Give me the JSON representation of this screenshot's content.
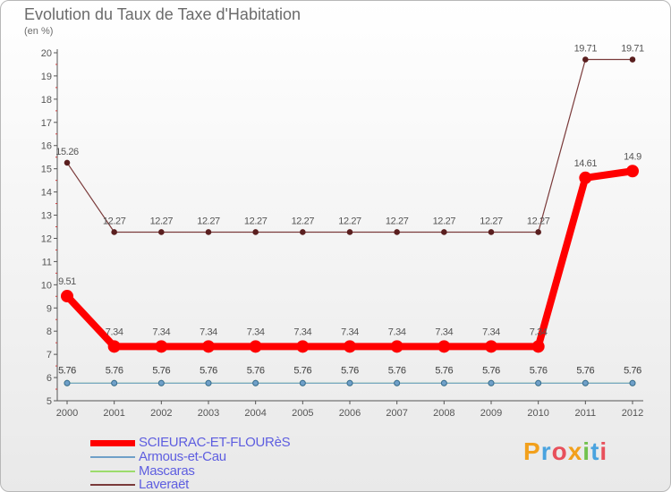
{
  "chart_data": {
    "type": "line",
    "title": "Evolution du Taux de Taxe d'Habitation",
    "ylabel": "(en %)",
    "xlabel": "",
    "ylim": [
      5,
      20
    ],
    "yticks": [
      5,
      6,
      7,
      8,
      9,
      10,
      11,
      12,
      13,
      14,
      15,
      16,
      17,
      18,
      19,
      20
    ],
    "categories": [
      "2000",
      "2001",
      "2002",
      "2003",
      "2004",
      "2005",
      "2006",
      "2007",
      "2008",
      "2009",
      "2010",
      "2011",
      "2012"
    ],
    "series": [
      {
        "name": "SCIEURAC-ET-FLOURèS",
        "color": "#ff0000",
        "values": [
          9.51,
          7.34,
          7.34,
          7.34,
          7.34,
          7.34,
          7.34,
          7.34,
          7.34,
          7.34,
          7.34,
          14.61,
          14.9
        ],
        "labels": [
          "9.51",
          "7.34",
          "7.34",
          "7.34",
          "7.34",
          "7.34",
          "7.34",
          "7.34",
          "7.34",
          "7.34",
          "7.34",
          "14.61",
          "14.9"
        ]
      },
      {
        "name": "Armous-et-Cau",
        "color": "#6fa0c8",
        "values": [
          5.76,
          5.76,
          5.76,
          5.76,
          5.76,
          5.76,
          5.76,
          5.76,
          5.76,
          5.76,
          5.76,
          5.76,
          5.76
        ],
        "labels": [
          "5.76",
          "5.76",
          "5.76",
          "5.76",
          "5.76",
          "5.76",
          "5.76",
          "5.76",
          "5.76",
          "5.76",
          "5.76",
          "5.76",
          "5.76"
        ]
      },
      {
        "name": "Mascaras",
        "color": "#9cdc6c",
        "values": [
          5.76,
          5.76,
          5.76,
          5.76,
          5.76,
          5.76,
          5.76,
          5.76,
          5.76,
          5.76,
          5.76,
          5.76,
          5.76
        ],
        "labels": [
          "5.76",
          "5.76",
          "5.76",
          "5.76",
          "5.76",
          "5.76",
          "5.76",
          "5.76",
          "5.76",
          "5.76",
          "5.76",
          "5.76",
          "5.76"
        ]
      },
      {
        "name": "Laveraët",
        "color": "#7a3a3a",
        "values": [
          15.26,
          12.27,
          12.27,
          12.27,
          12.27,
          12.27,
          12.27,
          12.27,
          12.27,
          12.27,
          12.27,
          19.71,
          19.71
        ],
        "labels": [
          "15.26",
          "12.27",
          "12.27",
          "12.27",
          "12.27",
          "12.27",
          "12.27",
          "12.27",
          "12.27",
          "12.27",
          "12.27",
          "19.71",
          "19.71"
        ]
      }
    ]
  },
  "logo": {
    "letters": [
      "P",
      "r",
      "o",
      "x",
      "i",
      "t",
      "i"
    ],
    "colors": [
      "#f2a01c",
      "#4aa3df",
      "#e8505b",
      "#f2a01c",
      "#72c24e",
      "#4aa3df",
      "#e8505b"
    ]
  }
}
